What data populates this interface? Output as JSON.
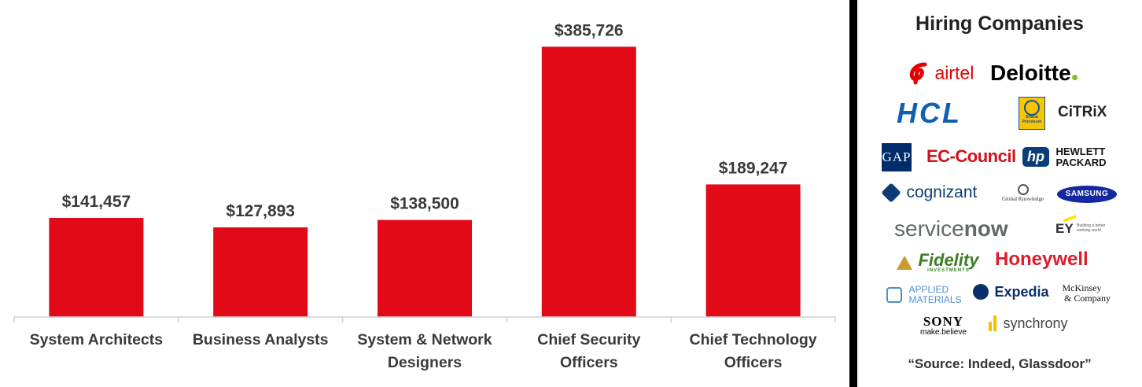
{
  "chart_data": {
    "type": "bar",
    "categories": [
      [
        "System Architects"
      ],
      [
        "Business Analysts"
      ],
      [
        "System & Network",
        "Designers"
      ],
      [
        "Chief Security",
        "Officers"
      ],
      [
        "Chief Technology",
        "Officers"
      ]
    ],
    "values": [
      141457,
      127893,
      138500,
      385726,
      189247
    ],
    "value_labels": [
      "$141,457",
      "$127,893",
      "$138,500",
      "$385,726",
      "$189,247"
    ],
    "title": "",
    "xlabel": "",
    "ylabel": "",
    "ylim": [
      0,
      430000
    ],
    "grid": false,
    "bar_color": "#e30a17",
    "axis_color": "#cfcfcf"
  },
  "panel": {
    "title": "Hiring Companies",
    "logos": {
      "airtel": "airtel",
      "deloitte": "Deloitte",
      "hcl": "HCL",
      "bharat_petroleum": "Bharat Petroleum",
      "citrix": "CiTRiX",
      "gap": "GAP",
      "ec_council": "EC-Council",
      "hp_mark": "hp",
      "hewlett": "HEWLETT",
      "packard": "PACKARD",
      "cognizant": "cognizant",
      "global_knowledge": "Global Knowledge",
      "samsung": "SAMSUNG",
      "servicenow_a": "service",
      "servicenow_b": "now",
      "ey": "EY",
      "ey_tagline_1": "Building a better",
      "ey_tagline_2": "working world",
      "fidelity": "Fidelity",
      "fidelity_sub": "INVESTMENTS",
      "honeywell": "Honeywell",
      "applied_1": "APPLIED",
      "applied_2": "MATERIALS",
      "expedia": "Expedia",
      "mckinsey_1": "McKinsey",
      "mckinsey_2": "& Company",
      "sony": "SONY",
      "sony_tag": "make.believe",
      "synchrony": "synchrony"
    },
    "source": "“Source: Indeed, Glassdoor”"
  },
  "colors": {
    "airtel": "#e40000",
    "hcl": "#0f5fb5",
    "ec_council": "#d1121d",
    "hp": "#0a3d7a",
    "cognizant": "#0d3c78",
    "samsung": "#1428a0",
    "servicenow": "#62686d",
    "fidelity": "#3b7d23",
    "honeywell": "#dc1e2c",
    "applied": "#4a8fd0",
    "expedia": "#0b2f6b"
  }
}
